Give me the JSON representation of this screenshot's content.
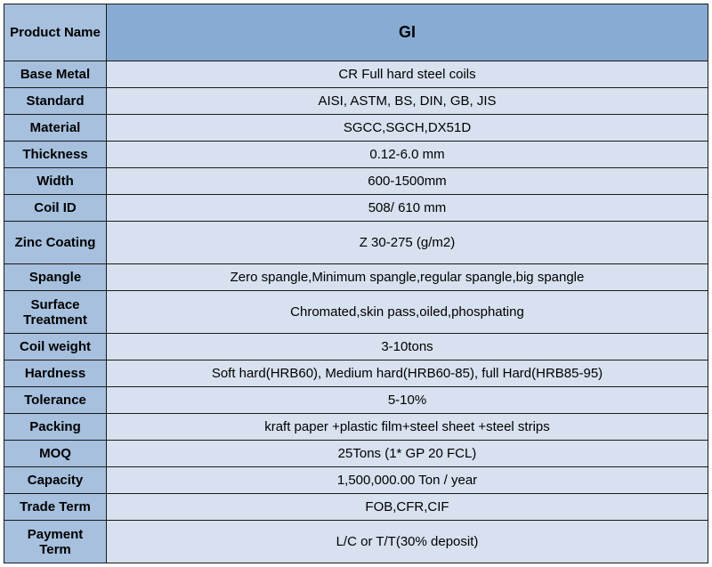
{
  "table": {
    "type": "table",
    "header_bg": "#88abd3",
    "label_bg": "#a6c0de",
    "value_bg": "#d7e1ef",
    "border_color": "#1a1a1a",
    "text_color": "#000000",
    "header_fontsize": 18,
    "body_fontsize": 15,
    "label_col_width": 115,
    "total_width": 792,
    "header": {
      "label": "Product Name",
      "value": "GI"
    },
    "rows": [
      {
        "label": "Base Metal",
        "value": "CR Full hard steel coils",
        "height": "normal"
      },
      {
        "label": "Standard",
        "value": "AISI, ASTM, BS, DIN, GB, JIS",
        "height": "normal"
      },
      {
        "label": "Material",
        "value": "SGCC,SGCH,DX51D",
        "height": "normal"
      },
      {
        "label": "Thickness",
        "value": "0.12-6.0 mm",
        "height": "normal"
      },
      {
        "label": "Width",
        "value": "600-1500mm",
        "height": "normal"
      },
      {
        "label": "Coil ID",
        "value": "508/ 610 mm",
        "height": "normal"
      },
      {
        "label": "Zinc Coating",
        "value": "Z 30-275 (g/m2)",
        "height": "tall"
      },
      {
        "label": "Spangle",
        "value": "Zero spangle,Minimum spangle,regular spangle,big spangle",
        "height": "normal"
      },
      {
        "label": "Surface Treatment",
        "value": "Chromated,skin pass,oiled,phosphating",
        "height": "tall"
      },
      {
        "label": "Coil weight",
        "value": "3-10tons",
        "height": "normal"
      },
      {
        "label": "Hardness",
        "value": "Soft hard(HRB60), Medium hard(HRB60-85), full Hard(HRB85-95)",
        "height": "normal"
      },
      {
        "label": "Tolerance",
        "value": "5-10%",
        "height": "normal"
      },
      {
        "label": "Packing",
        "value": "kraft paper +plastic film+steel sheet +steel strips",
        "height": "normal"
      },
      {
        "label": "MOQ",
        "value": "25Tons (1* GP 20 FCL)",
        "height": "normal"
      },
      {
        "label": "Capacity",
        "value": "1,500,000.00 Ton / year",
        "height": "normal"
      },
      {
        "label": "Trade Term",
        "value": "FOB,CFR,CIF",
        "height": "normal"
      },
      {
        "label": "Payment Term",
        "value": "L/C or T/T(30% deposit)",
        "height": "tall"
      }
    ]
  }
}
